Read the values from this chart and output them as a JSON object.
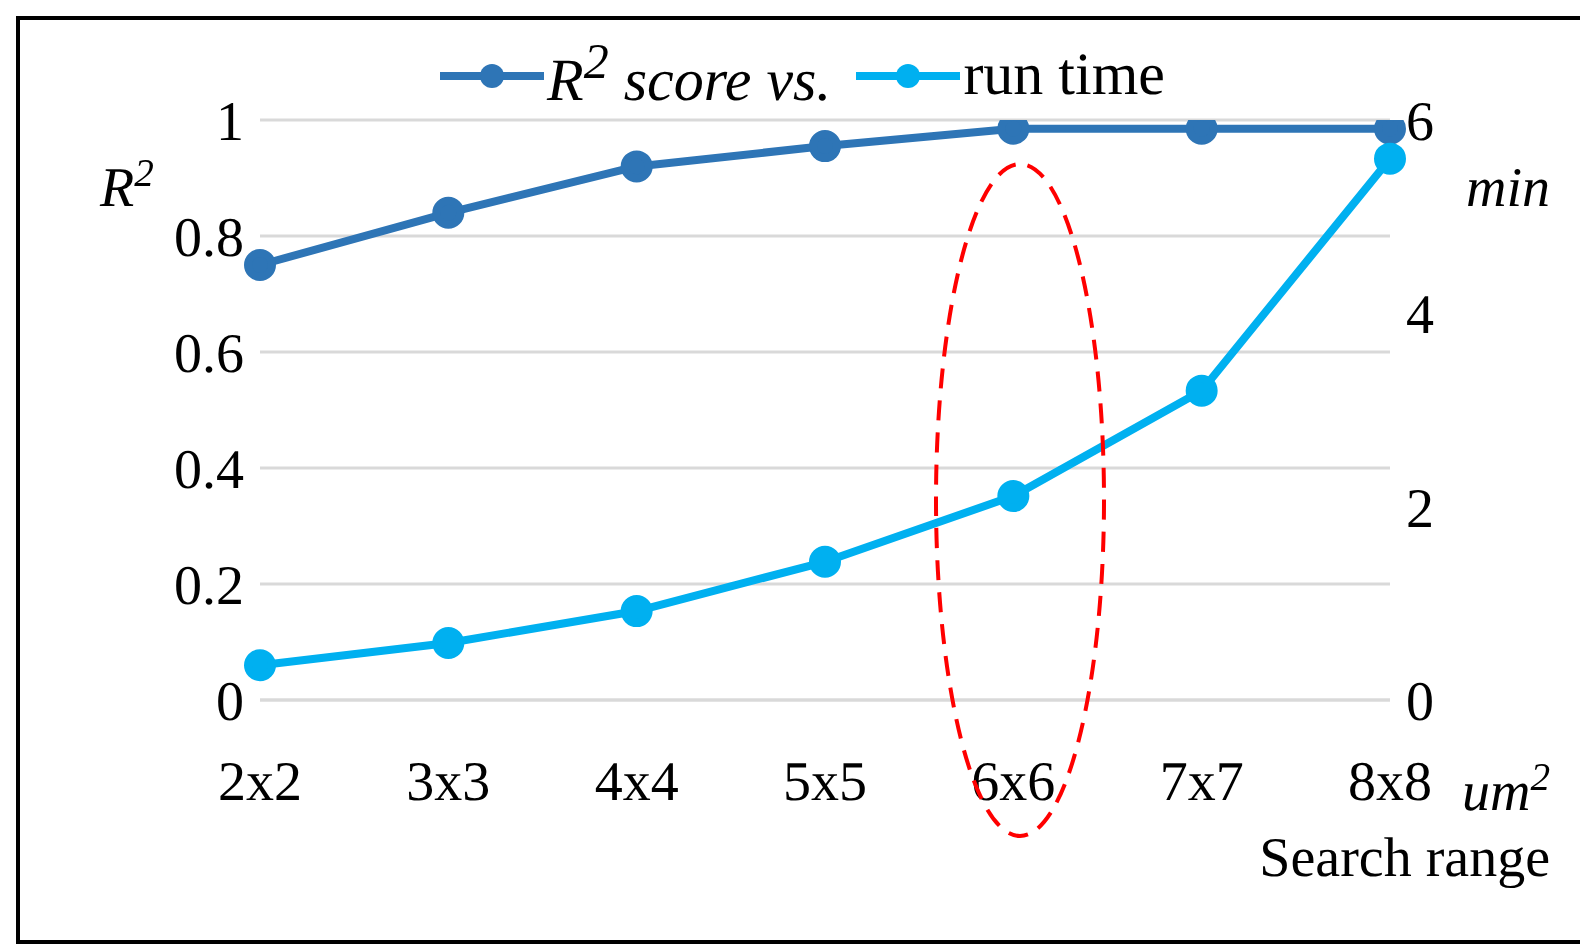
{
  "chart_data": {
    "type": "line",
    "categories": [
      "2x2",
      "3x3",
      "4x4",
      "5x5",
      "6x6",
      "7x7",
      "8x8"
    ],
    "series": [
      {
        "name": "$^{}$R$^{2}$ score vs.",
        "color": "#2e75b6",
        "values": [
          0.75,
          0.84,
          0.92,
          0.955,
          0.985,
          0.985,
          0.985
        ]
      },
      {
        "name": "run time",
        "color": "#00b0f0",
        "axis": "y2",
        "values": [
          0.36,
          0.59,
          0.92,
          1.43,
          2.11,
          3.2,
          5.6
        ]
      }
    ],
    "ylabel": "R$^{2}$",
    "y2label": "min",
    "xlabel": "Search range",
    "annotations": [
      "um$^{2}$"
    ],
    "ylim": [
      0,
      1
    ],
    "yticks": [
      0,
      0.2,
      0.4,
      0.6,
      0.8,
      1
    ],
    "y2lim": [
      0,
      6
    ],
    "y2ticks": [
      0,
      2,
      4,
      6
    ],
    "grid": "y",
    "legend": "top",
    "marker": "circle",
    "line_style": "solid"
  }
}
